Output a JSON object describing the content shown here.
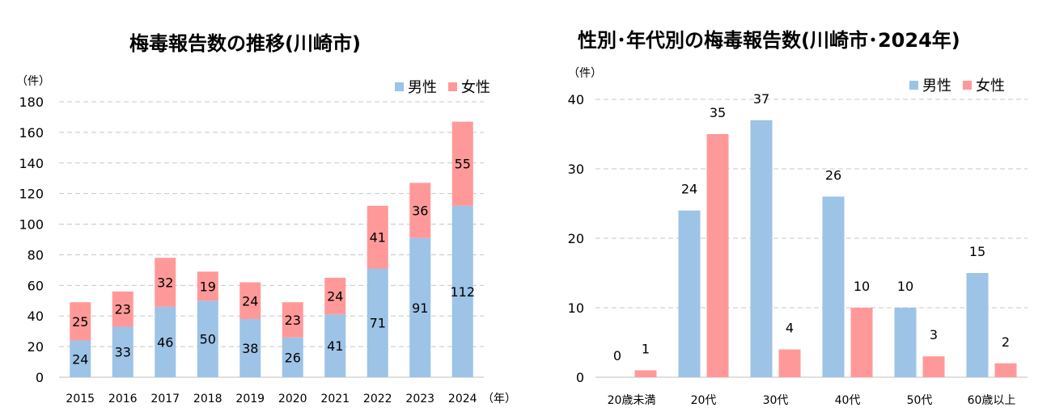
{
  "chart_data": [
    {
      "type": "bar",
      "stacked": true,
      "title": "梅毒報告数の推移(川崎市)",
      "y_unit": "（件）",
      "x_unit": "（年）",
      "categories": [
        "2015",
        "2016",
        "2017",
        "2018",
        "2019",
        "2020",
        "2021",
        "2022",
        "2023",
        "2024"
      ],
      "series": [
        {
          "name": "男性",
          "color": "#9DC3E6",
          "values": [
            24,
            33,
            46,
            50,
            38,
            26,
            41,
            71,
            91,
            112
          ]
        },
        {
          "name": "女性",
          "color": "#FF9999",
          "values": [
            25,
            23,
            32,
            19,
            24,
            23,
            24,
            41,
            36,
            55
          ]
        }
      ],
      "ylim": [
        0,
        180
      ],
      "yticks": [
        0,
        20,
        40,
        60,
        80,
        100,
        120,
        140,
        160,
        180
      ],
      "grid": true,
      "legend": "top-right"
    },
    {
      "type": "bar",
      "stacked": false,
      "title": "性別･年代別の梅毒報告数(川崎市･2024年)",
      "y_unit": "（件）",
      "categories": [
        "20歳未満",
        "20代",
        "30代",
        "40代",
        "50代",
        "60歳以上"
      ],
      "series": [
        {
          "name": "男性",
          "color": "#9DC3E6",
          "values": [
            0,
            24,
            37,
            26,
            10,
            15
          ]
        },
        {
          "name": "女性",
          "color": "#FF9999",
          "values": [
            1,
            35,
            4,
            10,
            3,
            2
          ]
        }
      ],
      "ylim": [
        0,
        40
      ],
      "yticks": [
        0,
        10,
        20,
        30,
        40
      ],
      "grid": true,
      "legend": "top-right"
    }
  ]
}
